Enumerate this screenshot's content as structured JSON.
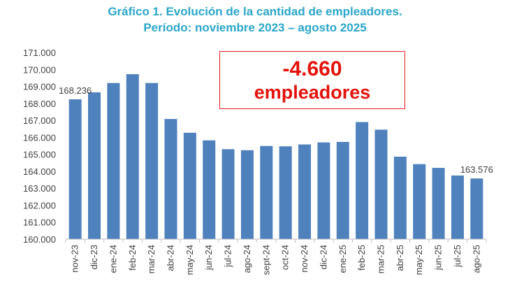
{
  "title_line1": "Gráfico 1. Evolución de la cantidad de empleadores.",
  "title_line2": "Período: noviembre 2023 – agosto 2025",
  "callout": {
    "value": "-4.660",
    "label": "empleadores"
  },
  "colors": {
    "bar": "#4f81bd",
    "title": "#2aa6c9",
    "callout": "#e3120b"
  },
  "chart_data": {
    "type": "bar",
    "title": "Gráfico 1. Evolución de la cantidad de empleadores. Período: noviembre 2023 – agosto 2025",
    "xlabel": "",
    "ylabel": "",
    "ylim": [
      160000,
      171000
    ],
    "yticks": [
      160000,
      161000,
      162000,
      163000,
      164000,
      165000,
      166000,
      167000,
      168000,
      169000,
      170000,
      171000
    ],
    "ytick_labels": [
      "160.000",
      "161.000",
      "162.000",
      "163.000",
      "164.000",
      "165.000",
      "166.000",
      "167.000",
      "168.000",
      "169.000",
      "170.000",
      "171.000"
    ],
    "categories": [
      "nov-23",
      "dic-23",
      "ene-24",
      "feb-24",
      "mar-24",
      "abr-24",
      "may-24",
      "jun-24",
      "jul-24",
      "ago-24",
      "sept-24",
      "oct-24",
      "nov-24",
      "dic-24",
      "ene-25",
      "feb-25",
      "mar-25",
      "abr-25",
      "may-25",
      "jun-25",
      "jul-25",
      "ago-25"
    ],
    "values": [
      168236,
      168650,
      169200,
      169720,
      169200,
      167080,
      166270,
      165820,
      165300,
      165240,
      165490,
      165470,
      165580,
      165700,
      165730,
      166900,
      166450,
      164860,
      164420,
      164200,
      163750,
      163576
    ],
    "data_labels": [
      {
        "index": 0,
        "text": "168.236"
      },
      {
        "index": 21,
        "text": "163.576"
      }
    ],
    "grid": false
  }
}
